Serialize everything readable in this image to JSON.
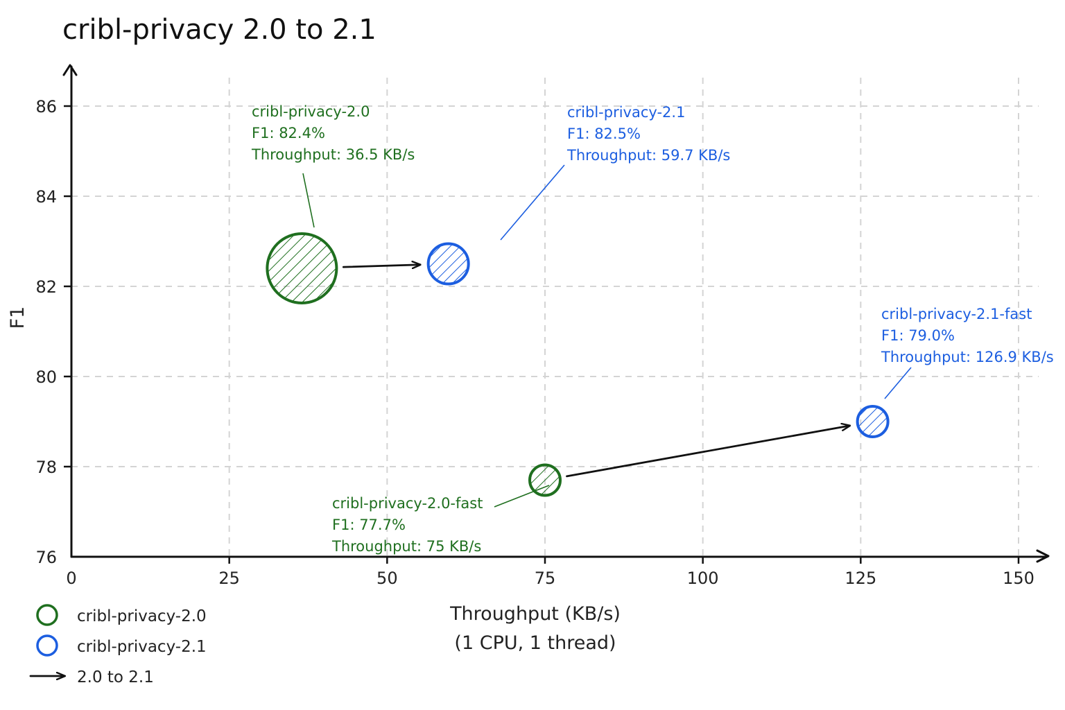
{
  "chart_data": {
    "type": "scatter",
    "title": "cribl-privacy 2.0 to 2.1",
    "xlabel": "Throughput (KB/s)",
    "xlabel_sub": "(1 CPU, 1 thread)",
    "ylabel": "F1",
    "xlim": [
      0,
      150
    ],
    "ylim": [
      76,
      87
    ],
    "xticks": [
      "0",
      "25",
      "50",
      "75",
      "100",
      "125",
      "150"
    ],
    "yticks": [
      "76",
      "78",
      "80",
      "82",
      "84",
      "86"
    ],
    "grid": true,
    "legend_position": "bottom-left",
    "colors": {
      "v20": "#1f6f1f",
      "v21": "#1c5ee0",
      "arrow": "#111111"
    },
    "series": [
      {
        "name": "cribl-privacy-2.0",
        "color": "#1f6f1f",
        "points": [
          {
            "label": "cribl-privacy-2.0",
            "x": 36.5,
            "y": 82.4,
            "f1_text": "F1: 82.4%",
            "tp_text": "Throughput: 36.5 KB/s",
            "size": "large"
          },
          {
            "label": "cribl-privacy-2.0-fast",
            "x": 75,
            "y": 77.7,
            "f1_text": "F1: 77.7%",
            "tp_text": "Throughput: 75 KB/s",
            "size": "small"
          }
        ]
      },
      {
        "name": "cribl-privacy-2.1",
        "color": "#1c5ee0",
        "points": [
          {
            "label": "cribl-privacy-2.1",
            "x": 59.7,
            "y": 82.5,
            "f1_text": "F1: 82.5%",
            "tp_text": "Throughput: 59.7 KB/s",
            "size": "medium"
          },
          {
            "label": "cribl-privacy-2.1-fast",
            "x": 126.9,
            "y": 79.0,
            "f1_text": "F1: 79.0%",
            "tp_text": "Throughput: 126.9 KB/s",
            "size": "small"
          }
        ]
      }
    ],
    "arrows": [
      {
        "from": "cribl-privacy-2.0",
        "to": "cribl-privacy-2.1"
      },
      {
        "from": "cribl-privacy-2.0-fast",
        "to": "cribl-privacy-2.1-fast"
      }
    ],
    "legend": [
      {
        "marker": "circle",
        "color": "#1f6f1f",
        "label": "cribl-privacy-2.0"
      },
      {
        "marker": "circle",
        "color": "#1c5ee0",
        "label": "cribl-privacy-2.1"
      },
      {
        "marker": "arrow",
        "color": "#111111",
        "label": "2.0 to 2.1"
      }
    ]
  }
}
